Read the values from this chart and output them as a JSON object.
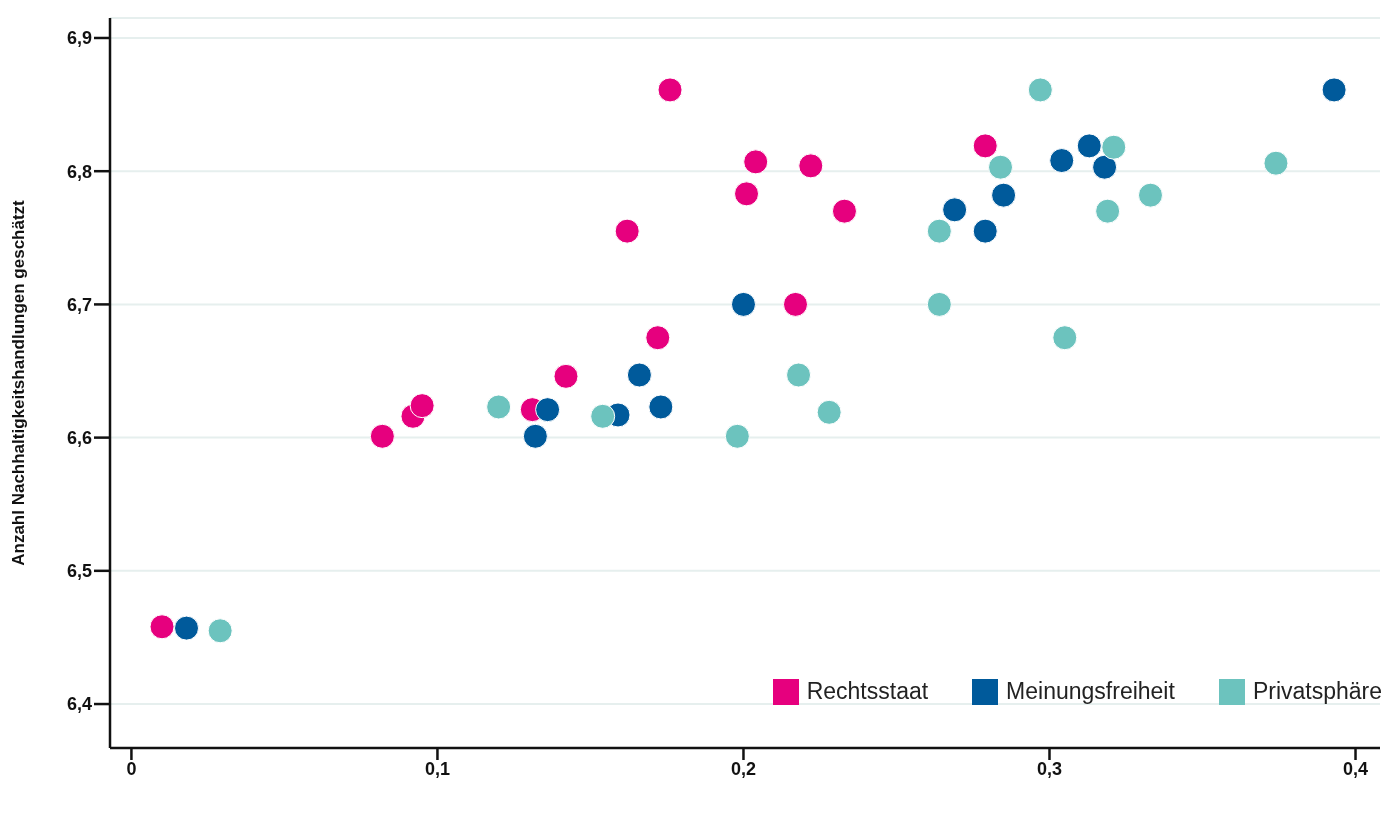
{
  "chart_data": {
    "type": "scatter",
    "ylabel": "Anzahl Nachhaltigkeitshandlungen geschätzt",
    "xlim": [
      -0.007,
      0.408
    ],
    "xticks": [
      {
        "value": 0,
        "label": "0"
      },
      {
        "value": 0.1,
        "label": "0,1"
      },
      {
        "value": 0.2,
        "label": "0,2"
      },
      {
        "value": 0.3,
        "label": "0,3"
      },
      {
        "value": 0.4,
        "label": "0,4"
      }
    ],
    "ylim": [
      6.367,
      6.915
    ],
    "yticks": [
      {
        "value": 6.4,
        "label": "6,4"
      },
      {
        "value": 6.5,
        "label": "6,5"
      },
      {
        "value": 6.6,
        "label": "6,6"
      },
      {
        "value": 6.7,
        "label": "6,7"
      },
      {
        "value": 6.8,
        "label": "6,8"
      },
      {
        "value": 6.9,
        "label": "6,9"
      }
    ],
    "grid": "y",
    "legend": "bottom right",
    "marker": "circle",
    "series": [
      {
        "name": "Rechtsstaat",
        "color": "#e6007e",
        "x": [
          0.01,
          0.082,
          0.092,
          0.095,
          0.131,
          0.142,
          0.162,
          0.172,
          0.176,
          0.201,
          0.204,
          0.217,
          0.222,
          0.233,
          0.279
        ],
        "values": [
          6.458,
          6.601,
          6.616,
          6.624,
          6.621,
          6.646,
          6.755,
          6.675,
          6.861,
          6.783,
          6.807,
          6.7,
          6.804,
          6.77,
          6.819
        ]
      },
      {
        "name": "Meinungsfreiheit",
        "color": "#005a9b",
        "x": [
          0.018,
          0.132,
          0.136,
          0.159,
          0.166,
          0.173,
          0.2,
          0.269,
          0.279,
          0.285,
          0.304,
          0.313,
          0.318,
          0.393
        ],
        "values": [
          6.457,
          6.601,
          6.621,
          6.617,
          6.647,
          6.623,
          6.7,
          6.771,
          6.755,
          6.782,
          6.808,
          6.819,
          6.803,
          6.861
        ]
      },
      {
        "name": "Privatsphäre",
        "color": "#6cc3be",
        "x": [
          0.029,
          0.12,
          0.154,
          0.198,
          0.218,
          0.228,
          0.264,
          0.264,
          0.284,
          0.297,
          0.305,
          0.319,
          0.321,
          0.333,
          0.374
        ],
        "values": [
          6.455,
          6.623,
          6.616,
          6.601,
          6.647,
          6.619,
          6.755,
          6.7,
          6.803,
          6.861,
          6.675,
          6.77,
          6.818,
          6.782,
          6.806
        ]
      }
    ]
  }
}
